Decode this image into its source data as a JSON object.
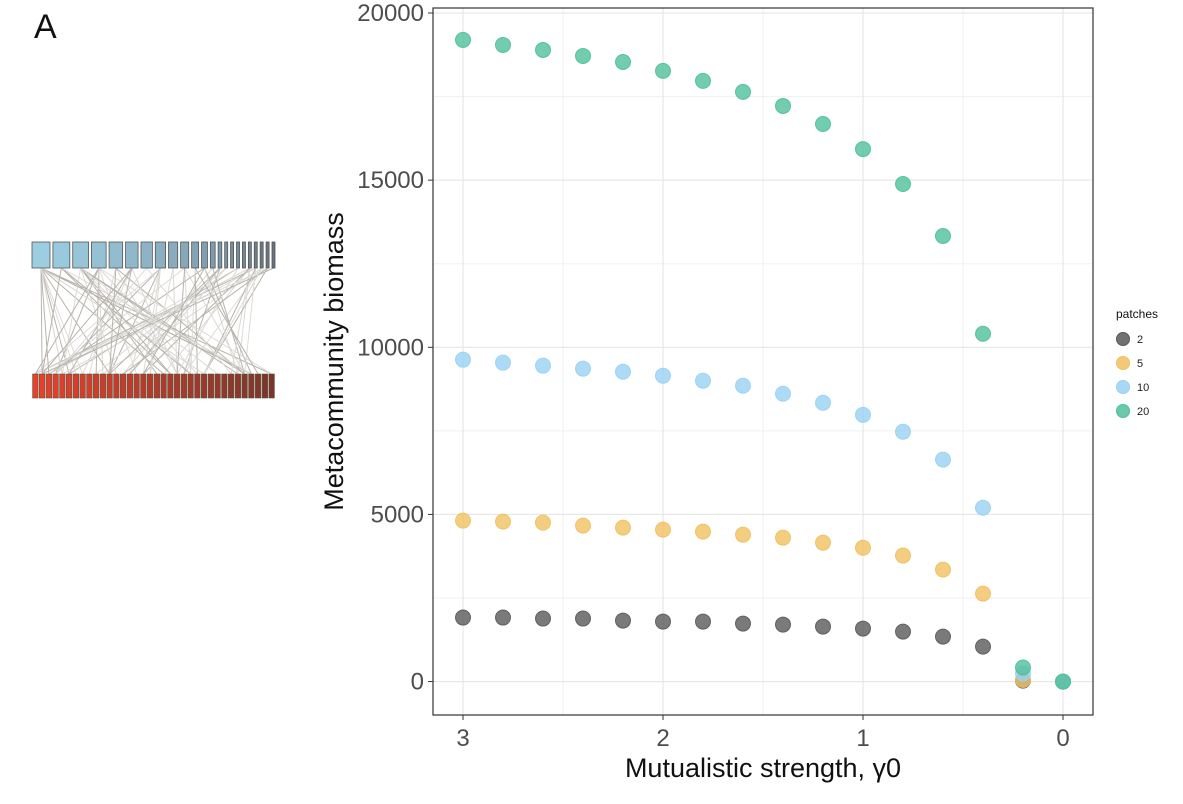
{
  "panel_label": "A",
  "chart_data": {
    "type": "scatter",
    "xlabel": "Mutualistic strength, γ0",
    "ylabel": "Metacommunity biomass",
    "x_reversed": true,
    "xlim": [
      3.15,
      -0.15
    ],
    "ylim": [
      -1000,
      20150
    ],
    "xticks": [
      3,
      2,
      1,
      0
    ],
    "yticks": [
      0,
      5000,
      10000,
      15000,
      20000
    ],
    "grid": true,
    "legend": {
      "title": "patches",
      "placement": "right"
    },
    "x": [
      3.0,
      2.8,
      2.6,
      2.4,
      2.2,
      2.0,
      1.8,
      1.6,
      1.4,
      1.2,
      1.0,
      0.8,
      0.6,
      0.4,
      0.2,
      0.0
    ],
    "series": [
      {
        "name": "2",
        "color": "#595959",
        "values": [
          1915,
          1915,
          1885,
          1885,
          1825,
          1795,
          1795,
          1735,
          1705,
          1645,
          1585,
          1495,
          1345,
          1045,
          30,
          0
        ]
      },
      {
        "name": "5",
        "color": "#f0c060",
        "values": [
          4815,
          4785,
          4755,
          4665,
          4605,
          4545,
          4485,
          4395,
          4305,
          4155,
          4005,
          3770,
          3350,
          2630,
          50,
          0
        ]
      },
      {
        "name": "10",
        "color": "#99d1f2",
        "values": [
          9630,
          9540,
          9450,
          9360,
          9270,
          9150,
          9000,
          8850,
          8610,
          8340,
          7980,
          7475,
          6640,
          5200,
          240,
          0
        ]
      },
      {
        "name": "20",
        "color": "#4fbf9a",
        "values": [
          19195,
          19045,
          18895,
          18715,
          18535,
          18270,
          17970,
          17640,
          17220,
          16680,
          15930,
          14885,
          13330,
          10405,
          420,
          0
        ]
      }
    ]
  },
  "network": {
    "top_nodes": 23,
    "bottom_nodes": 36,
    "top_color": "#9ccde0",
    "bottom_color": "#e8402e"
  }
}
